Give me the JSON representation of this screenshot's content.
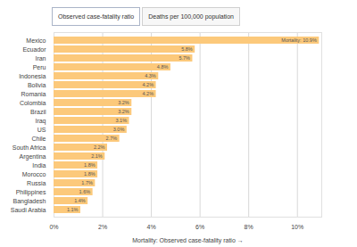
{
  "buttons": [
    "Observed case-fatality ratio",
    "Deaths per 100,000 population"
  ],
  "chart_data": {
    "type": "bar",
    "orientation": "horizontal",
    "xlabel": "Mortality: Observed case-fatality ratio",
    "categories": [
      "Mexico",
      "Ecuador",
      "Iran",
      "Peru",
      "Indonesia",
      "Bolivia",
      "Romania",
      "Colombia",
      "Brazil",
      "Iraq",
      "US",
      "Chile",
      "South Africa",
      "Argentina",
      "India",
      "Morocco",
      "Russia",
      "Philippines",
      "Bangladesh",
      "Saudi Arabia"
    ],
    "values": [
      10.9,
      5.8,
      5.7,
      4.8,
      4.3,
      4.2,
      4.2,
      3.2,
      3.2,
      3.1,
      3.0,
      2.7,
      2.2,
      2.1,
      1.8,
      1.8,
      1.7,
      1.6,
      1.4,
      1.1
    ],
    "value_labels": [
      "Mortality: 10.9%",
      "5.8%",
      "5.7%",
      "4.8%",
      "4.3%",
      "4.2%",
      "4.2%",
      "3.2%",
      "3.2%",
      "3.1%",
      "3.0%",
      "2.7%",
      "2.2%",
      "2.1%",
      "1.8%",
      "1.8%",
      "1.7%",
      "1.6%",
      "1.4%",
      "1.1%"
    ],
    "data_labels": true,
    "color": "#fcc97b",
    "xlim": [
      0,
      11
    ],
    "xticks": [
      {
        "value": 0,
        "label": "0%"
      },
      {
        "value": 2,
        "label": "2%"
      },
      {
        "value": 4,
        "label": "4%"
      },
      {
        "value": 6,
        "label": "6%"
      },
      {
        "value": 8,
        "label": "8%"
      },
      {
        "value": 10,
        "label": "10%"
      }
    ],
    "grid": true
  }
}
